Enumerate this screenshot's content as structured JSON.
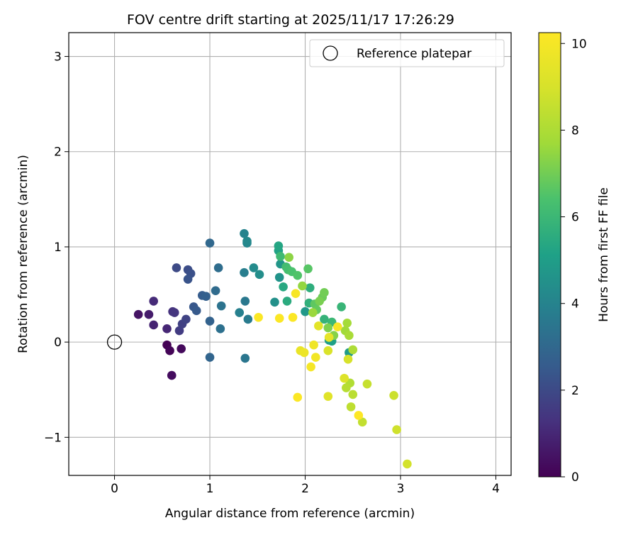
{
  "chart_data": {
    "type": "scatter",
    "title": "FOV centre drift starting at 2025/11/17 17:26:29",
    "xlabel": "Angular distance from reference (arcmin)",
    "ylabel": "Rotation from reference (arcmin)",
    "xlim": [
      -0.48,
      4.16
    ],
    "ylim": [
      -1.4,
      3.25
    ],
    "xticks": [
      0,
      1,
      2,
      3,
      4
    ],
    "yticks": [
      -1,
      0,
      1,
      2,
      3
    ],
    "grid": true,
    "legend": {
      "placement": "top-right",
      "entries": [
        "Reference platepar"
      ]
    },
    "reference_point": {
      "x": 0,
      "y": 0,
      "label": "Reference platepar"
    },
    "colorbar": {
      "label": "Hours from first FF file",
      "min": 0,
      "max": 10.25,
      "ticks": [
        0,
        2,
        4,
        6,
        8,
        10
      ],
      "colormap": "viridis"
    },
    "points": [
      {
        "x": 0.55,
        "y": -0.03,
        "h": 0.0
      },
      {
        "x": 0.58,
        "y": -0.09,
        "h": 0.1
      },
      {
        "x": 0.7,
        "y": -0.07,
        "h": 0.2
      },
      {
        "x": 0.6,
        "y": -0.35,
        "h": 0.3
      },
      {
        "x": 0.25,
        "y": 0.29,
        "h": 0.5
      },
      {
        "x": 0.36,
        "y": 0.29,
        "h": 0.7
      },
      {
        "x": 0.41,
        "y": 0.18,
        "h": 0.9
      },
      {
        "x": 0.55,
        "y": 0.14,
        "h": 1.0
      },
      {
        "x": 0.41,
        "y": 0.43,
        "h": 1.1
      },
      {
        "x": 0.61,
        "y": 0.32,
        "h": 1.3
      },
      {
        "x": 0.63,
        "y": 0.31,
        "h": 1.4
      },
      {
        "x": 0.68,
        "y": 0.12,
        "h": 1.6
      },
      {
        "x": 0.71,
        "y": 0.19,
        "h": 1.7
      },
      {
        "x": 0.75,
        "y": 0.24,
        "h": 1.8
      },
      {
        "x": 0.65,
        "y": 0.78,
        "h": 2.0
      },
      {
        "x": 0.77,
        "y": 0.76,
        "h": 2.1
      },
      {
        "x": 0.8,
        "y": 0.72,
        "h": 2.2
      },
      {
        "x": 0.77,
        "y": 0.66,
        "h": 2.3
      },
      {
        "x": 0.83,
        "y": 0.37,
        "h": 2.4
      },
      {
        "x": 0.86,
        "y": 0.33,
        "h": 2.5
      },
      {
        "x": 0.92,
        "y": 0.49,
        "h": 2.6
      },
      {
        "x": 0.96,
        "y": 0.48,
        "h": 2.7
      },
      {
        "x": 1.0,
        "y": 0.22,
        "h": 2.8
      },
      {
        "x": 1.0,
        "y": -0.16,
        "h": 2.9
      },
      {
        "x": 1.0,
        "y": 1.04,
        "h": 3.0
      },
      {
        "x": 1.06,
        "y": 0.54,
        "h": 3.1
      },
      {
        "x": 1.09,
        "y": 0.78,
        "h": 3.2
      },
      {
        "x": 1.11,
        "y": 0.14,
        "h": 3.3
      },
      {
        "x": 1.12,
        "y": 0.38,
        "h": 3.4
      },
      {
        "x": 1.37,
        "y": -0.17,
        "h": 3.5
      },
      {
        "x": 1.37,
        "y": 0.43,
        "h": 3.6
      },
      {
        "x": 1.4,
        "y": 0.24,
        "h": 3.7
      },
      {
        "x": 1.36,
        "y": 0.73,
        "h": 3.8
      },
      {
        "x": 1.31,
        "y": 0.31,
        "h": 3.9
      },
      {
        "x": 1.36,
        "y": 1.14,
        "h": 4.0
      },
      {
        "x": 1.39,
        "y": 1.04,
        "h": 4.1
      },
      {
        "x": 1.39,
        "y": 1.06,
        "h": 4.2
      },
      {
        "x": 1.46,
        "y": 0.78,
        "h": 4.3
      },
      {
        "x": 1.52,
        "y": 0.71,
        "h": 4.4
      },
      {
        "x": 1.68,
        "y": 0.42,
        "h": 4.5
      },
      {
        "x": 1.73,
        "y": 0.68,
        "h": 4.6
      },
      {
        "x": 1.74,
        "y": 0.82,
        "h": 4.7
      },
      {
        "x": 2.0,
        "y": 0.32,
        "h": 4.8
      },
      {
        "x": 2.46,
        "y": -0.11,
        "h": 4.9
      },
      {
        "x": 2.25,
        "y": 0.02,
        "h": 5.0
      },
      {
        "x": 2.28,
        "y": 0.01,
        "h": 5.1
      },
      {
        "x": 1.72,
        "y": 0.96,
        "h": 5.2
      },
      {
        "x": 1.72,
        "y": 1.01,
        "h": 5.3
      },
      {
        "x": 1.77,
        "y": 0.58,
        "h": 5.4
      },
      {
        "x": 1.81,
        "y": 0.43,
        "h": 5.5
      },
      {
        "x": 2.05,
        "y": 0.57,
        "h": 5.6
      },
      {
        "x": 2.04,
        "y": 0.41,
        "h": 5.7
      },
      {
        "x": 2.2,
        "y": 0.24,
        "h": 5.8
      },
      {
        "x": 2.38,
        "y": 0.37,
        "h": 5.9
      },
      {
        "x": 2.28,
        "y": 0.21,
        "h": 6.0
      },
      {
        "x": 1.74,
        "y": 0.9,
        "h": 6.1
      },
      {
        "x": 1.8,
        "y": 0.79,
        "h": 6.2
      },
      {
        "x": 1.82,
        "y": 0.76,
        "h": 6.3
      },
      {
        "x": 1.86,
        "y": 0.74,
        "h": 6.4
      },
      {
        "x": 1.92,
        "y": 0.7,
        "h": 6.5
      },
      {
        "x": 2.03,
        "y": 0.77,
        "h": 6.6
      },
      {
        "x": 2.1,
        "y": 0.4,
        "h": 6.7
      },
      {
        "x": 2.12,
        "y": 0.34,
        "h": 6.8
      },
      {
        "x": 2.18,
        "y": 0.47,
        "h": 6.9
      },
      {
        "x": 2.2,
        "y": 0.52,
        "h": 7.0
      },
      {
        "x": 2.15,
        "y": 0.43,
        "h": 7.1
      },
      {
        "x": 2.24,
        "y": 0.15,
        "h": 7.2
      },
      {
        "x": 2.3,
        "y": 0.07,
        "h": 7.3
      },
      {
        "x": 1.83,
        "y": 0.89,
        "h": 7.4
      },
      {
        "x": 1.97,
        "y": 0.59,
        "h": 7.5
      },
      {
        "x": 2.08,
        "y": 0.31,
        "h": 7.6
      },
      {
        "x": 2.42,
        "y": 0.12,
        "h": 7.7
      },
      {
        "x": 2.44,
        "y": 0.2,
        "h": 7.8
      },
      {
        "x": 2.46,
        "y": 0.07,
        "h": 7.9
      },
      {
        "x": 2.5,
        "y": -0.08,
        "h": 8.0
      },
      {
        "x": 2.47,
        "y": -0.43,
        "h": 8.1
      },
      {
        "x": 2.43,
        "y": -0.48,
        "h": 8.2
      },
      {
        "x": 2.5,
        "y": -0.55,
        "h": 8.3
      },
      {
        "x": 2.48,
        "y": -0.68,
        "h": 8.4
      },
      {
        "x": 2.6,
        "y": -0.84,
        "h": 8.5
      },
      {
        "x": 2.65,
        "y": -0.44,
        "h": 8.6
      },
      {
        "x": 2.93,
        "y": -0.56,
        "h": 8.7
      },
      {
        "x": 2.96,
        "y": -0.92,
        "h": 8.8
      },
      {
        "x": 3.07,
        "y": -1.28,
        "h": 8.9
      },
      {
        "x": 2.45,
        "y": -0.18,
        "h": 9.0
      },
      {
        "x": 2.24,
        "y": -0.09,
        "h": 9.1
      },
      {
        "x": 2.41,
        "y": -0.38,
        "h": 9.2
      },
      {
        "x": 2.24,
        "y": -0.57,
        "h": 9.3
      },
      {
        "x": 2.14,
        "y": 0.17,
        "h": 9.4
      },
      {
        "x": 2.25,
        "y": 0.05,
        "h": 9.5
      },
      {
        "x": 1.95,
        "y": -0.09,
        "h": 9.6
      },
      {
        "x": 1.99,
        "y": -0.11,
        "h": 9.7
      },
      {
        "x": 2.09,
        "y": -0.03,
        "h": 9.8
      },
      {
        "x": 2.11,
        "y": -0.16,
        "h": 9.9
      },
      {
        "x": 2.06,
        "y": -0.26,
        "h": 10.0
      },
      {
        "x": 1.9,
        "y": 0.51,
        "h": 10.05
      },
      {
        "x": 2.34,
        "y": 0.16,
        "h": 10.1
      },
      {
        "x": 1.51,
        "y": 0.26,
        "h": 10.15
      },
      {
        "x": 1.73,
        "y": 0.25,
        "h": 10.2
      },
      {
        "x": 1.87,
        "y": 0.26,
        "h": 10.2
      },
      {
        "x": 1.92,
        "y": -0.58,
        "h": 10.2
      },
      {
        "x": 2.56,
        "y": -0.77,
        "h": 10.25
      }
    ]
  }
}
